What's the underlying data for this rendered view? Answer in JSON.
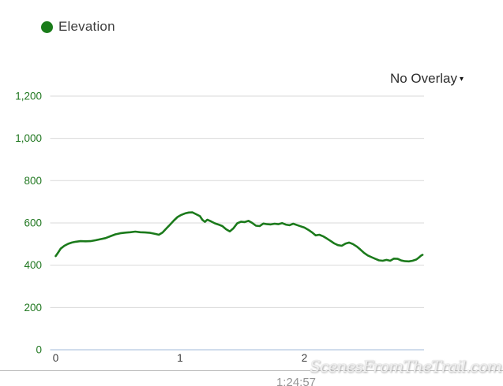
{
  "legend": {
    "label": "Elevation",
    "marker_color": "#1a7c1a"
  },
  "overlay_dropdown": {
    "label": "No Overlay",
    "caret": "▾"
  },
  "footer": {
    "total_time": "1:24:57"
  },
  "watermark_text": "ScenesFromTheTrail.com",
  "chart_data": {
    "type": "line",
    "title": "",
    "legend_position": "top-left",
    "grid": true,
    "xlim": [
      0,
      3
    ],
    "ylim": [
      0,
      1200
    ],
    "x_tick_values": [
      0,
      1,
      2
    ],
    "x_tick_labels": [
      "0",
      "1",
      "2"
    ],
    "y_tick_values": [
      0,
      200,
      400,
      600,
      800,
      1000,
      1200
    ],
    "y_tick_labels": [
      "0",
      "200",
      "400",
      "600",
      "800",
      "1,000",
      "1,200"
    ],
    "colors": {
      "grid": "#d9d9d9",
      "zero_line": "#b3c6e0",
      "y_tick": "#217821",
      "x_tick": "#3c3c3c"
    },
    "series": [
      {
        "name": "Elevation",
        "color": "#1b7a1b",
        "x": [
          0,
          0.02,
          0.04,
          0.07,
          0.1,
          0.13,
          0.16,
          0.2,
          0.24,
          0.28,
          0.32,
          0.36,
          0.4,
          0.44,
          0.48,
          0.52,
          0.56,
          0.6,
          0.64,
          0.68,
          0.72,
          0.76,
          0.8,
          0.83,
          0.86,
          0.89,
          0.92,
          0.95,
          0.98,
          1.01,
          1.04,
          1.07,
          1.1,
          1.13,
          1.16,
          1.18,
          1.2,
          1.22,
          1.25,
          1.28,
          1.31,
          1.34,
          1.37,
          1.4,
          1.43,
          1.46,
          1.49,
          1.52,
          1.55,
          1.58,
          1.61,
          1.64,
          1.67,
          1.7,
          1.73,
          1.76,
          1.79,
          1.82,
          1.85,
          1.88,
          1.91,
          1.94,
          1.97,
          2.0,
          2.03,
          2.06,
          2.09,
          2.12,
          2.15,
          2.18,
          2.21,
          2.24,
          2.27,
          2.3,
          2.33,
          2.36,
          2.39,
          2.42,
          2.45,
          2.48,
          2.51,
          2.54,
          2.57,
          2.6,
          2.63,
          2.66,
          2.69,
          2.72,
          2.75,
          2.78,
          2.81,
          2.84,
          2.87,
          2.9,
          2.92,
          2.94,
          2.95
        ],
        "y": [
          443,
          460,
          478,
          492,
          501,
          507,
          511,
          514,
          513,
          514,
          518,
          523,
          528,
          537,
          546,
          551,
          554,
          556,
          559,
          556,
          555,
          553,
          548,
          544,
          555,
          574,
          592,
          611,
          628,
          638,
          645,
          649,
          650,
          641,
          632,
          614,
          605,
          615,
          607,
          598,
          592,
          585,
          570,
          560,
          575,
          598,
          606,
          604,
          610,
          600,
          587,
          585,
          597,
          594,
          593,
          596,
          594,
          599,
          592,
          589,
          596,
          590,
          584,
          578,
          568,
          556,
          541,
          544,
          537,
          526,
          515,
          503,
          495,
          492,
          502,
          507,
          500,
          489,
          474,
          458,
          446,
          438,
          430,
          423,
          421,
          425,
          421,
          431,
          430,
          422,
          419,
          418,
          421,
          427,
          436,
          446,
          449
        ]
      }
    ]
  }
}
